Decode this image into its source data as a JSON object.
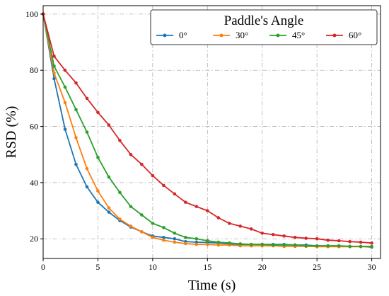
{
  "chart_data": {
    "type": "line",
    "xlabel": "Time (s)",
    "ylabel": "RSD (%)",
    "xlim": [
      0,
      30.8
    ],
    "ylim": [
      13,
      103
    ],
    "xticks": [
      0,
      5,
      10,
      15,
      20,
      25,
      30
    ],
    "yticks": [
      20,
      40,
      60,
      80,
      100
    ],
    "grid": true,
    "legend": {
      "title": "Paddle's Angle",
      "placement": "top-right",
      "columns": 4
    },
    "x": [
      0,
      1,
      2,
      3,
      4,
      5,
      6,
      7,
      8,
      9,
      10,
      11,
      12,
      13,
      14,
      15,
      16,
      17,
      18,
      19,
      20,
      21,
      22,
      23,
      24,
      25,
      26,
      27,
      28,
      29,
      30
    ],
    "series": [
      {
        "name": "0°",
        "color": "#1f77b4",
        "values": [
          100,
          77,
          59,
          46.5,
          38.5,
          33,
          29.5,
          26.5,
          24.2,
          22.5,
          21,
          20.5,
          20,
          19,
          18.8,
          18.7,
          18.5,
          18.2,
          18,
          18,
          18,
          18,
          18,
          17.8,
          17.8,
          17.5,
          17.5,
          17.5,
          17.3,
          17.3,
          17
        ]
      },
      {
        "name": "30°",
        "color": "#ff7f0e",
        "values": [
          100,
          79,
          68.5,
          56,
          45,
          37,
          31,
          27,
          24.5,
          22.5,
          20.5,
          19.5,
          18.8,
          18.3,
          18,
          18,
          17.8,
          17.8,
          17.5,
          17.5,
          17.5,
          17.5,
          17.3,
          17.3,
          17.3,
          17.2,
          17.2,
          17.2,
          17.2,
          17.2,
          17.2
        ]
      },
      {
        "name": "45°",
        "color": "#2ca02c",
        "values": [
          100,
          81.5,
          74,
          66,
          58,
          49,
          42,
          36.5,
          31.5,
          28.5,
          25.5,
          24,
          22,
          20.5,
          20,
          19.3,
          18.8,
          18.5,
          18.2,
          18,
          18,
          17.8,
          17.8,
          17.8,
          17.5,
          17.5,
          17.5,
          17.5,
          17.3,
          17.3,
          17.3
        ]
      },
      {
        "name": "60°",
        "color": "#d62728",
        "values": [
          100,
          85,
          80,
          75.5,
          70,
          65,
          60.5,
          55,
          50,
          46.5,
          42.5,
          39,
          36,
          33,
          31.5,
          30,
          27.5,
          25.5,
          24.5,
          23.5,
          22,
          21.5,
          21,
          20.5,
          20.2,
          20,
          19.5,
          19.3,
          19,
          18.8,
          18.5
        ]
      }
    ]
  }
}
